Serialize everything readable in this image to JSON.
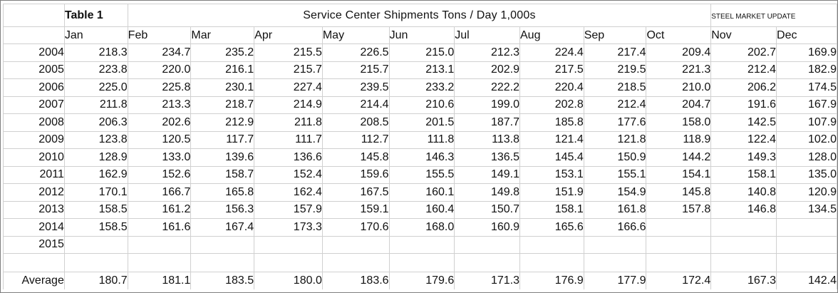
{
  "chart_data": {
    "type": "table",
    "table_label": "Table 1",
    "title": "Service Center Shipments Tons / Day 1,000s",
    "logo_text": "STEEL MARKET UPDATE",
    "months": [
      "Jan",
      "Feb",
      "Mar",
      "Apr",
      "May",
      "Jun",
      "Jul",
      "Aug",
      "Sep",
      "Oct",
      "Nov",
      "Dec"
    ],
    "rows": [
      {
        "year": "2004",
        "values": [
          "218.3",
          "234.7",
          "235.2",
          "215.5",
          "226.5",
          "215.0",
          "212.3",
          "224.4",
          "217.4",
          "209.4",
          "202.7",
          "169.9"
        ]
      },
      {
        "year": "2005",
        "values": [
          "223.8",
          "220.0",
          "216.1",
          "215.7",
          "215.7",
          "213.1",
          "202.9",
          "217.5",
          "219.5",
          "221.3",
          "212.4",
          "182.9"
        ]
      },
      {
        "year": "2006",
        "values": [
          "225.0",
          "225.8",
          "230.1",
          "227.4",
          "239.5",
          "233.2",
          "222.2",
          "220.4",
          "218.5",
          "210.0",
          "206.2",
          "174.5"
        ]
      },
      {
        "year": "2007",
        "values": [
          "211.8",
          "213.3",
          "218.7",
          "214.9",
          "214.4",
          "210.6",
          "199.0",
          "202.8",
          "212.4",
          "204.7",
          "191.6",
          "167.9"
        ]
      },
      {
        "year": "2008",
        "values": [
          "206.3",
          "202.6",
          "212.9",
          "211.8",
          "208.5",
          "201.5",
          "187.7",
          "185.8",
          "177.6",
          "158.0",
          "142.5",
          "107.9"
        ]
      },
      {
        "year": "2009",
        "values": [
          "123.8",
          "120.5",
          "117.7",
          "111.7",
          "112.7",
          "111.8",
          "113.8",
          "121.4",
          "121.8",
          "118.9",
          "122.4",
          "102.0"
        ]
      },
      {
        "year": "2010",
        "values": [
          "128.9",
          "133.0",
          "139.6",
          "136.6",
          "145.8",
          "146.3",
          "136.5",
          "145.4",
          "150.9",
          "144.2",
          "149.3",
          "128.0"
        ]
      },
      {
        "year": "2011",
        "values": [
          "162.9",
          "152.6",
          "158.7",
          "152.4",
          "159.6",
          "155.5",
          "149.1",
          "153.1",
          "155.1",
          "154.1",
          "158.1",
          "135.0"
        ]
      },
      {
        "year": "2012",
        "values": [
          "170.1",
          "166.7",
          "165.8",
          "162.4",
          "167.5",
          "160.1",
          "149.8",
          "151.9",
          "154.9",
          "145.8",
          "140.8",
          "120.9"
        ]
      },
      {
        "year": "2013",
        "values": [
          "158.5",
          "161.2",
          "156.3",
          "157.9",
          "159.1",
          "160.4",
          "150.7",
          "158.1",
          "161.8",
          "157.8",
          "146.8",
          "134.5"
        ]
      },
      {
        "year": "2014",
        "values": [
          "158.5",
          "161.6",
          "167.4",
          "173.3",
          "170.6",
          "168.0",
          "160.9",
          "165.6",
          "166.6",
          "",
          "",
          ""
        ]
      },
      {
        "year": "2015",
        "values": [
          "",
          "",
          "",
          "",
          "",
          "",
          "",
          "",
          "",
          "",
          "",
          ""
        ]
      }
    ],
    "average": {
      "label": "Average",
      "values": [
        "180.7",
        "181.1",
        "183.5",
        "180.0",
        "183.6",
        "179.6",
        "171.3",
        "176.9",
        "177.9",
        "172.4",
        "167.3",
        "142.4"
      ]
    }
  }
}
